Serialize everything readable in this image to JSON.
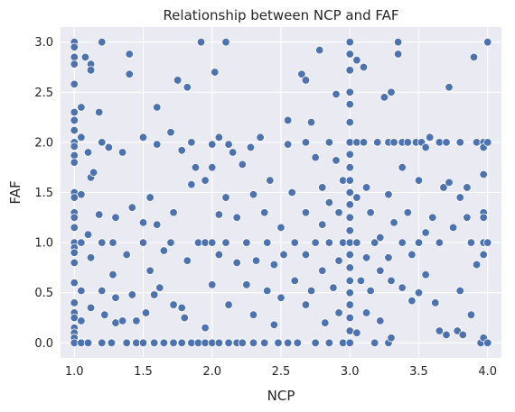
{
  "chart_data": {
    "type": "scatter",
    "title": "Relationship between NCP and FAF",
    "xlabel": "NCP",
    "ylabel": "FAF",
    "xlim": [
      0.9,
      4.1
    ],
    "ylim": [
      -0.15,
      3.15
    ],
    "xticks": [
      1.0,
      1.5,
      2.0,
      2.5,
      3.0,
      3.5,
      4.0
    ],
    "yticks": [
      0.0,
      0.5,
      1.0,
      1.5,
      2.0,
      2.5,
      3.0
    ],
    "xtick_labels": [
      "1.0",
      "1.5",
      "2.0",
      "2.5",
      "3.0",
      "3.5",
      "4.0"
    ],
    "ytick_labels": [
      "0.0",
      "0.5",
      "1.0",
      "1.5",
      "2.0",
      "2.5",
      "3.0"
    ],
    "grid": true,
    "background_color": "#eaeaf2",
    "grid_color": "#ffffff",
    "marker_color": "#4c72b0",
    "marker_edge_color": "#ffffff",
    "points": [
      [
        1.0,
        3.0
      ],
      [
        1.0,
        2.95
      ],
      [
        1.0,
        2.85
      ],
      [
        1.0,
        2.78
      ],
      [
        1.0,
        2.58
      ],
      [
        1.0,
        2.3
      ],
      [
        1.0,
        2.22
      ],
      [
        1.0,
        2.12
      ],
      [
        1.0,
        2.0
      ],
      [
        1.0,
        1.96
      ],
      [
        1.0,
        1.87
      ],
      [
        1.0,
        1.8
      ],
      [
        1.0,
        1.5
      ],
      [
        1.0,
        1.45
      ],
      [
        1.0,
        1.3
      ],
      [
        1.0,
        1.25
      ],
      [
        1.0,
        1.15
      ],
      [
        1.0,
        1.0
      ],
      [
        1.0,
        0.95
      ],
      [
        1.0,
        0.9
      ],
      [
        1.0,
        0.8
      ],
      [
        1.0,
        0.6
      ],
      [
        1.0,
        0.4
      ],
      [
        1.0,
        0.3
      ],
      [
        1.0,
        0.25
      ],
      [
        1.0,
        0.15
      ],
      [
        1.0,
        0.1
      ],
      [
        1.0,
        0.05
      ],
      [
        1.0,
        0.0
      ],
      [
        1.05,
        2.35
      ],
      [
        1.05,
        2.05
      ],
      [
        1.05,
        1.48
      ],
      [
        1.05,
        1.0
      ],
      [
        1.05,
        0.52
      ],
      [
        1.05,
        0.22
      ],
      [
        1.05,
        0.0
      ],
      [
        1.08,
        2.85
      ],
      [
        1.12,
        2.78
      ],
      [
        1.12,
        2.72
      ],
      [
        1.1,
        1.9
      ],
      [
        1.12,
        1.65
      ],
      [
        1.14,
        1.7
      ],
      [
        1.1,
        1.08
      ],
      [
        1.12,
        0.85
      ],
      [
        1.12,
        0.35
      ],
      [
        1.1,
        0.0
      ],
      [
        1.2,
        3.0
      ],
      [
        1.2,
        2.0
      ],
      [
        1.18,
        2.3
      ],
      [
        1.18,
        1.28
      ],
      [
        1.2,
        1.0
      ],
      [
        1.2,
        0.52
      ],
      [
        1.22,
        0.28
      ],
      [
        1.2,
        0.0
      ],
      [
        1.25,
        1.95
      ],
      [
        1.3,
        1.25
      ],
      [
        1.28,
        1.0
      ],
      [
        1.28,
        0.68
      ],
      [
        1.3,
        0.45
      ],
      [
        1.3,
        0.2
      ],
      [
        1.27,
        0.0
      ],
      [
        1.35,
        1.9
      ],
      [
        1.38,
        0.88
      ],
      [
        1.35,
        0.22
      ],
      [
        1.38,
        0.0
      ],
      [
        1.4,
        2.88
      ],
      [
        1.4,
        2.68
      ],
      [
        1.42,
        1.35
      ],
      [
        1.42,
        0.48
      ],
      [
        1.45,
        0.22
      ],
      [
        1.45,
        0.0
      ],
      [
        1.5,
        2.05
      ],
      [
        1.5,
        1.2
      ],
      [
        1.5,
        1.0
      ],
      [
        1.52,
        0.3
      ],
      [
        1.5,
        0.0
      ],
      [
        1.55,
        1.45
      ],
      [
        1.55,
        0.72
      ],
      [
        1.58,
        0.48
      ],
      [
        1.58,
        0.0
      ],
      [
        1.6,
        2.35
      ],
      [
        1.6,
        1.98
      ],
      [
        1.6,
        1.18
      ],
      [
        1.62,
        0.55
      ],
      [
        1.65,
        0.92
      ],
      [
        1.65,
        0.0
      ],
      [
        1.7,
        2.1
      ],
      [
        1.72,
        1.3
      ],
      [
        1.7,
        1.0
      ],
      [
        1.72,
        0.38
      ],
      [
        1.72,
        0.0
      ],
      [
        1.75,
        2.62
      ],
      [
        1.78,
        1.92
      ],
      [
        1.78,
        0.35
      ],
      [
        1.8,
        0.25
      ],
      [
        1.78,
        0.0
      ],
      [
        1.82,
        2.55
      ],
      [
        1.85,
        2.0
      ],
      [
        1.85,
        1.58
      ],
      [
        1.82,
        0.82
      ],
      [
        1.85,
        0.0
      ],
      [
        1.88,
        1.75
      ],
      [
        1.9,
        1.0
      ],
      [
        1.9,
        0.0
      ],
      [
        1.92,
        3.0
      ],
      [
        1.95,
        1.62
      ],
      [
        1.95,
        1.0
      ],
      [
        1.95,
        0.15
      ],
      [
        1.95,
        0.0
      ],
      [
        2.0,
        1.98
      ],
      [
        2.0,
        1.75
      ],
      [
        2.0,
        1.0
      ],
      [
        2.0,
        0.58
      ],
      [
        2.0,
        0.0
      ],
      [
        2.02,
        2.7
      ],
      [
        2.05,
        2.05
      ],
      [
        2.05,
        1.28
      ],
      [
        2.05,
        0.88
      ],
      [
        2.05,
        0.0
      ],
      [
        2.1,
        3.0
      ],
      [
        2.12,
        1.98
      ],
      [
        2.1,
        1.45
      ],
      [
        2.1,
        1.0
      ],
      [
        2.12,
        0.38
      ],
      [
        2.12,
        0.0
      ],
      [
        2.15,
        1.9
      ],
      [
        2.18,
        1.25
      ],
      [
        2.18,
        0.8
      ],
      [
        2.18,
        0.0
      ],
      [
        2.22,
        1.78
      ],
      [
        2.25,
        1.0
      ],
      [
        2.25,
        0.58
      ],
      [
        2.22,
        0.0
      ],
      [
        2.28,
        1.95
      ],
      [
        2.3,
        1.48
      ],
      [
        2.32,
        0.82
      ],
      [
        2.3,
        0.28
      ],
      [
        2.3,
        0.0
      ],
      [
        2.35,
        2.05
      ],
      [
        2.38,
        1.3
      ],
      [
        2.4,
        1.0
      ],
      [
        2.4,
        0.52
      ],
      [
        2.38,
        0.0
      ],
      [
        2.42,
        1.62
      ],
      [
        2.45,
        0.78
      ],
      [
        2.45,
        0.18
      ],
      [
        2.48,
        0.0
      ],
      [
        2.5,
        1.15
      ],
      [
        2.52,
        0.88
      ],
      [
        2.5,
        0.45
      ],
      [
        2.55,
        0.0
      ],
      [
        2.55,
        2.22
      ],
      [
        2.55,
        1.98
      ],
      [
        2.58,
        1.5
      ],
      [
        2.6,
        1.0
      ],
      [
        2.6,
        0.62
      ],
      [
        2.62,
        0.0
      ],
      [
        2.65,
        2.68
      ],
      [
        2.68,
        2.62
      ],
      [
        2.68,
        2.0
      ],
      [
        2.68,
        1.3
      ],
      [
        2.68,
        0.88
      ],
      [
        2.68,
        0.38
      ],
      [
        2.72,
        2.2
      ],
      [
        2.75,
        1.85
      ],
      [
        2.75,
        1.0
      ],
      [
        2.72,
        0.52
      ],
      [
        2.75,
        0.0
      ],
      [
        2.78,
        2.92
      ],
      [
        2.8,
        1.55
      ],
      [
        2.8,
        1.18
      ],
      [
        2.8,
        0.72
      ],
      [
        2.82,
        0.2
      ],
      [
        2.85,
        2.0
      ],
      [
        2.85,
        1.4
      ],
      [
        2.85,
        1.0
      ],
      [
        2.88,
        0.55
      ],
      [
        2.85,
        0.0
      ],
      [
        2.9,
        2.48
      ],
      [
        2.9,
        1.82
      ],
      [
        2.92,
        1.3
      ],
      [
        2.92,
        0.82
      ],
      [
        2.92,
        0.3
      ],
      [
        2.95,
        1.62
      ],
      [
        2.95,
        1.0
      ],
      [
        2.95,
        0.0
      ],
      [
        3.0,
        3.0
      ],
      [
        3.0,
        2.88
      ],
      [
        3.0,
        2.72
      ],
      [
        3.0,
        2.5
      ],
      [
        3.0,
        2.38
      ],
      [
        3.0,
        2.2
      ],
      [
        3.0,
        2.0
      ],
      [
        3.0,
        1.88
      ],
      [
        3.0,
        1.75
      ],
      [
        3.0,
        1.62
      ],
      [
        3.0,
        1.5
      ],
      [
        3.0,
        1.38
      ],
      [
        3.0,
        1.25
      ],
      [
        3.0,
        1.12
      ],
      [
        3.0,
        1.0
      ],
      [
        3.0,
        0.88
      ],
      [
        3.0,
        0.75
      ],
      [
        3.0,
        0.62
      ],
      [
        3.0,
        0.5
      ],
      [
        3.0,
        0.38
      ],
      [
        3.0,
        0.25
      ],
      [
        3.0,
        0.12
      ],
      [
        3.0,
        0.0
      ],
      [
        3.05,
        2.82
      ],
      [
        3.05,
        2.0
      ],
      [
        3.05,
        1.45
      ],
      [
        3.05,
        1.0
      ],
      [
        3.08,
        0.62
      ],
      [
        3.05,
        0.1
      ],
      [
        3.1,
        2.75
      ],
      [
        3.1,
        2.0
      ],
      [
        3.12,
        1.55
      ],
      [
        3.12,
        0.85
      ],
      [
        3.12,
        0.3
      ],
      [
        3.15,
        1.3
      ],
      [
        3.18,
        1.0
      ],
      [
        3.15,
        0.52
      ],
      [
        3.18,
        0.0
      ],
      [
        3.2,
        2.0
      ],
      [
        3.22,
        1.05
      ],
      [
        3.22,
        0.72
      ],
      [
        3.22,
        0.22
      ],
      [
        3.25,
        2.45
      ],
      [
        3.28,
        2.0
      ],
      [
        3.28,
        1.48
      ],
      [
        3.28,
        0.85
      ],
      [
        3.28,
        0.0
      ],
      [
        3.3,
        2.5
      ],
      [
        3.32,
        2.0
      ],
      [
        3.32,
        1.2
      ],
      [
        3.3,
        0.62
      ],
      [
        3.3,
        0.05
      ],
      [
        3.35,
        3.0
      ],
      [
        3.35,
        2.88
      ],
      [
        3.38,
        2.0
      ],
      [
        3.38,
        1.75
      ],
      [
        3.38,
        1.0
      ],
      [
        3.38,
        0.55
      ],
      [
        3.42,
        2.0
      ],
      [
        3.42,
        1.3
      ],
      [
        3.45,
        0.88
      ],
      [
        3.45,
        0.42
      ],
      [
        3.48,
        2.0
      ],
      [
        3.5,
        1.62
      ],
      [
        3.5,
        1.0
      ],
      [
        3.5,
        0.5
      ],
      [
        3.52,
        2.0
      ],
      [
        3.55,
        1.95
      ],
      [
        3.55,
        1.1
      ],
      [
        3.55,
        0.68
      ],
      [
        3.58,
        2.05
      ],
      [
        3.6,
        1.25
      ],
      [
        3.62,
        0.4
      ],
      [
        3.65,
        2.0
      ],
      [
        3.65,
        1.0
      ],
      [
        3.65,
        0.12
      ],
      [
        3.68,
        1.55
      ],
      [
        3.7,
        2.0
      ],
      [
        3.7,
        0.08
      ],
      [
        3.72,
        2.55
      ],
      [
        3.72,
        1.6
      ],
      [
        3.75,
        1.15
      ],
      [
        3.78,
        0.12
      ],
      [
        3.8,
        2.0
      ],
      [
        3.8,
        1.45
      ],
      [
        3.8,
        0.52
      ],
      [
        3.82,
        0.08
      ],
      [
        3.85,
        1.55
      ],
      [
        3.85,
        1.25
      ],
      [
        3.88,
        1.0
      ],
      [
        3.88,
        0.28
      ],
      [
        3.9,
        2.85
      ],
      [
        3.92,
        2.0
      ],
      [
        3.92,
        0.78
      ],
      [
        3.95,
        0.0
      ],
      [
        3.97,
        2.0
      ],
      [
        3.97,
        1.95
      ],
      [
        3.97,
        1.68
      ],
      [
        3.97,
        1.3
      ],
      [
        3.97,
        1.25
      ],
      [
        3.97,
        1.0
      ],
      [
        3.97,
        0.88
      ],
      [
        3.97,
        0.05
      ],
      [
        4.0,
        3.0
      ],
      [
        4.0,
        2.0
      ],
      [
        4.0,
        1.0
      ],
      [
        4.0,
        0.0
      ]
    ]
  }
}
